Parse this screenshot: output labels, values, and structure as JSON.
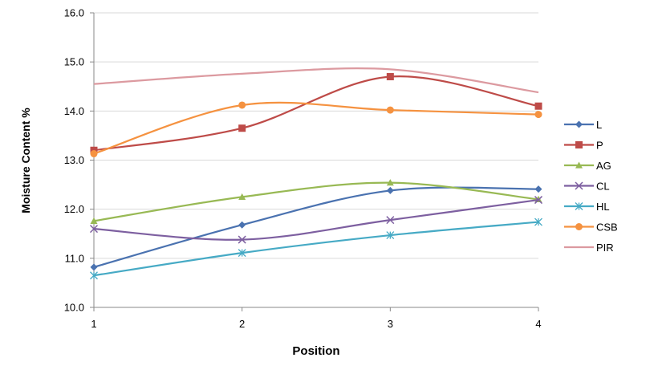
{
  "chart_data": {
    "type": "line",
    "xlabel": "Position",
    "ylabel": "Moisture Content %",
    "categories": [
      "1",
      "2",
      "3",
      "4"
    ],
    "ylim": [
      10.0,
      16.0
    ],
    "yticks": [
      "10.0",
      "11.0",
      "12.0",
      "13.0",
      "14.0",
      "15.0",
      "16.0"
    ],
    "grid": true,
    "legend_position": "right",
    "series": [
      {
        "name": "L",
        "values": [
          10.82,
          11.68,
          12.38,
          12.41
        ],
        "color": "#4a72b0",
        "marker": "diamond"
      },
      {
        "name": "P",
        "values": [
          13.2,
          13.65,
          14.7,
          14.1
        ],
        "color": "#be4b48",
        "marker": "square"
      },
      {
        "name": "AG",
        "values": [
          11.76,
          12.25,
          12.54,
          12.2
        ],
        "color": "#98b954",
        "marker": "triangle"
      },
      {
        "name": "CL",
        "values": [
          11.6,
          11.38,
          11.78,
          12.19
        ],
        "color": "#7d5fa0",
        "marker": "x"
      },
      {
        "name": "HL",
        "values": [
          10.65,
          11.11,
          11.47,
          11.74
        ],
        "color": "#46aac5",
        "marker": "star"
      },
      {
        "name": "CSB",
        "values": [
          13.13,
          14.12,
          14.02,
          13.93
        ],
        "color": "#f59240",
        "marker": "circle"
      },
      {
        "name": "PIR",
        "values": [
          14.55,
          14.76,
          14.85,
          14.38
        ],
        "color": "#dc9aa0",
        "marker": "none"
      }
    ]
  }
}
